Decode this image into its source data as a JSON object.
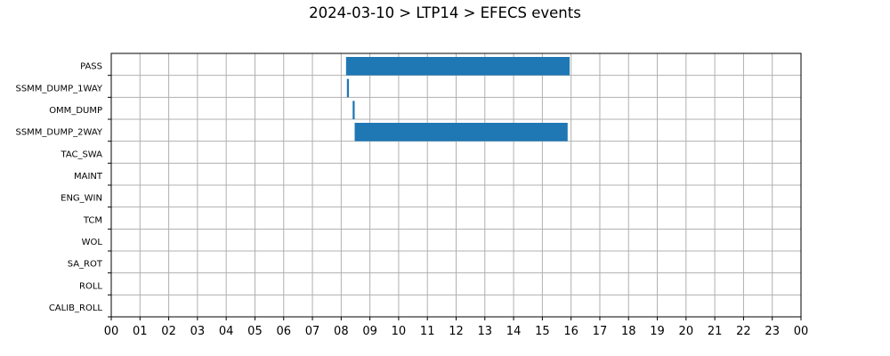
{
  "chart_data": {
    "type": "bar",
    "orientation": "horizontal-timeline",
    "title": "2024-03-10 > LTP14 > EFECS events",
    "xlabel": "",
    "ylabel": "",
    "xlim": [
      0,
      24
    ],
    "x_tick_labels": [
      "00",
      "01",
      "02",
      "03",
      "04",
      "05",
      "06",
      "07",
      "08",
      "09",
      "10",
      "11",
      "12",
      "13",
      "14",
      "15",
      "16",
      "17",
      "18",
      "19",
      "20",
      "21",
      "22",
      "23",
      "00"
    ],
    "categories": [
      "PASS",
      "SSMM_DUMP_1WAY",
      "OMM_DUMP",
      "SSMM_DUMP_2WAY",
      "TAC_SWA",
      "MAINT",
      "ENG_WIN",
      "TCM",
      "WOL",
      "SA_ROT",
      "ROLL",
      "CALIB_ROLL"
    ],
    "events": [
      {
        "category": "PASS",
        "start": 8.17,
        "end": 15.95
      },
      {
        "category": "SSMM_DUMP_1WAY",
        "start": 8.2,
        "end": 8.27
      },
      {
        "category": "OMM_DUMP",
        "start": 8.4,
        "end": 8.47
      },
      {
        "category": "SSMM_DUMP_2WAY",
        "start": 8.47,
        "end": 15.88
      }
    ],
    "bar_color": "#1f77b4",
    "grid": true,
    "legend": "none"
  }
}
